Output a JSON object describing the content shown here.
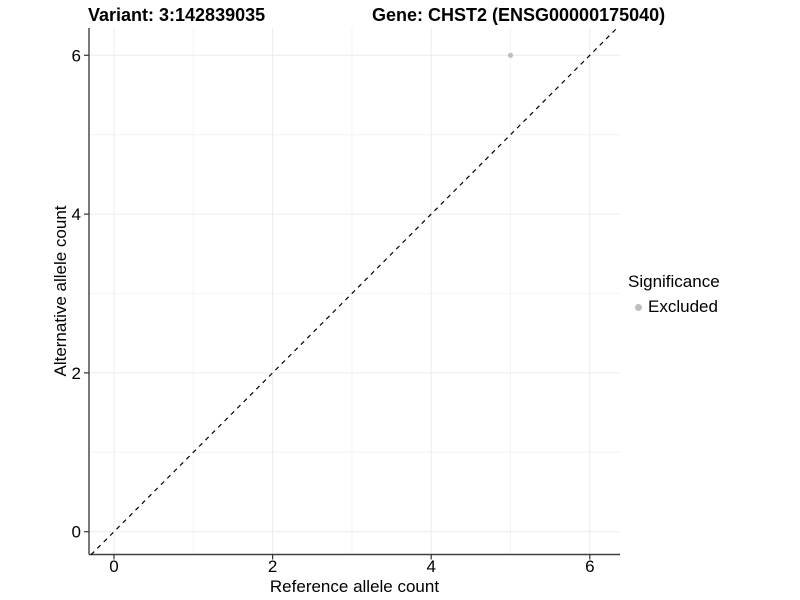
{
  "chart_data": {
    "type": "scatter",
    "title_left": "Variant: 3:142839035",
    "title_right": "Gene: CHST2 (ENSG00000175040)",
    "xlabel": "Reference allele count",
    "ylabel": "Alternative allele count",
    "xlim": [
      -0.32,
      6.38
    ],
    "ylim": [
      -0.29,
      6.35
    ],
    "xticks": [
      0,
      2,
      4,
      6
    ],
    "yticks": [
      0,
      2,
      4,
      6
    ],
    "x_minor": [
      1,
      3,
      5
    ],
    "y_minor": [
      1,
      3,
      5
    ],
    "grid": "major+minor",
    "legend_position": "right",
    "series": [
      {
        "name": "Excluded",
        "color": "#bebebe",
        "points": [
          {
            "x": 5,
            "y": 6
          }
        ]
      }
    ],
    "reference_line": {
      "kind": "identity",
      "equation": "y = x",
      "style": "dashed",
      "color": "#000000"
    }
  },
  "legend": {
    "title": "Significance",
    "items": [
      {
        "label": "Excluded",
        "color": "#bebebe"
      }
    ]
  },
  "colors": {
    "background": "#ffffff",
    "grid_major": "#ebebeb",
    "grid_minor": "#f4f4f4",
    "axis_line": "#404040",
    "tick": "#333333",
    "text": "#000000"
  }
}
